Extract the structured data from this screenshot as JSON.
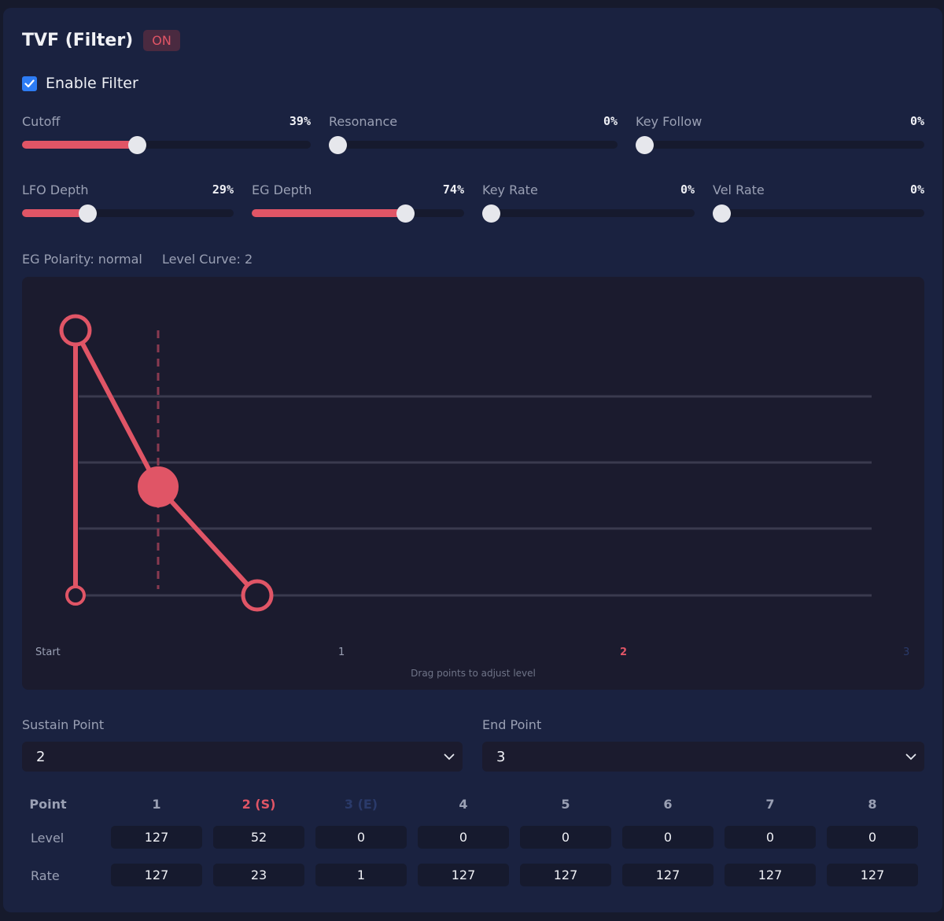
{
  "header": {
    "title": "TVF (Filter)",
    "badge": "ON"
  },
  "enable": {
    "label": "Enable Filter",
    "checked": true
  },
  "sliders_row1": [
    {
      "label": "Cutoff",
      "value": "39%",
      "fraction": 0.39
    },
    {
      "label": "Resonance",
      "value": "0%",
      "fraction": 0
    },
    {
      "label": "Key Follow",
      "value": "0%",
      "fraction": 0
    }
  ],
  "sliders_row2": [
    {
      "label": "LFO Depth",
      "value": "29%",
      "fraction": 0.29
    },
    {
      "label": "EG Depth",
      "value": "74%",
      "fraction": 0.74
    },
    {
      "label": "Key Rate",
      "value": "0%",
      "fraction": 0
    },
    {
      "label": "Vel Rate",
      "value": "0%",
      "fraction": 0
    }
  ],
  "info": {
    "polarity": "EG Polarity: normal",
    "curve": "Level Curve: 2"
  },
  "envelope": {
    "x_labels": [
      "Start",
      "1",
      "2",
      "3"
    ],
    "hint": "Drag points to adjust level",
    "max_level": 127,
    "start_level": 0,
    "colors": {
      "line": "#e05566",
      "sustain": "#e05566",
      "end": "#2a3a6a",
      "grid": "#3a3a4e"
    }
  },
  "sustain": {
    "label": "Sustain Point",
    "value": "2"
  },
  "end": {
    "label": "End Point",
    "value": "3"
  },
  "table": {
    "header_label": "Point",
    "level_label": "Level",
    "rate_label": "Rate",
    "columns": [
      "1",
      "2 (S)",
      "3 (E)",
      "4",
      "5",
      "6",
      "7",
      "8"
    ],
    "levels": [
      "127",
      "52",
      "0",
      "0",
      "0",
      "0",
      "0",
      "0"
    ],
    "rates": [
      "127",
      "23",
      "1",
      "127",
      "127",
      "127",
      "127",
      "127"
    ]
  },
  "colors": {
    "accent": "#e05566",
    "check": "#2d7cf4",
    "end_dim": "#2a3a6a"
  }
}
